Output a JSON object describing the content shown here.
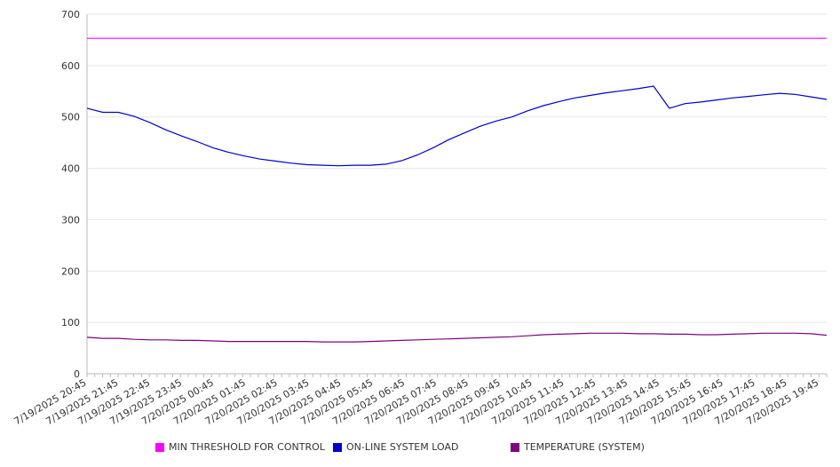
{
  "chart_data": {
    "type": "line",
    "title": "",
    "xlabel": "",
    "ylabel": "",
    "ylim": [
      0,
      700
    ],
    "yticks": [
      0,
      100,
      200,
      300,
      400,
      500,
      600,
      700
    ],
    "grid": true,
    "legend_position": "bottom",
    "x_tick_labels": [
      "7/19/2025 20:45",
      "7/19/2025 21:45",
      "7/19/2025 22:45",
      "7/19/2025 23:45",
      "7/20/2025 00:45",
      "7/20/2025 01:45",
      "7/20/2025 02:45",
      "7/20/2025 03:45",
      "7/20/2025 04:45",
      "7/20/2025 05:45",
      "7/20/2025 06:45",
      "7/20/2025 07:45",
      "7/20/2025 08:45",
      "7/20/2025 09:45",
      "7/20/2025 10:45",
      "7/20/2025 11:45",
      "7/20/2025 12:45",
      "7/20/2025 13:45",
      "7/20/2025 14:45",
      "7/20/2025 15:45",
      "7/20/2025 16:45",
      "7/20/2025 17:45",
      "7/20/2025 18:45",
      "7/20/2025 19:45"
    ],
    "x": [
      "7/19/2025 20:45",
      "7/19/2025 21:15",
      "7/19/2025 21:45",
      "7/19/2025 22:15",
      "7/19/2025 22:45",
      "7/19/2025 23:15",
      "7/19/2025 23:45",
      "7/20/2025 00:15",
      "7/20/2025 00:45",
      "7/20/2025 01:15",
      "7/20/2025 01:45",
      "7/20/2025 02:15",
      "7/20/2025 02:45",
      "7/20/2025 03:15",
      "7/20/2025 03:45",
      "7/20/2025 04:15",
      "7/20/2025 04:45",
      "7/20/2025 05:15",
      "7/20/2025 05:45",
      "7/20/2025 06:15",
      "7/20/2025 06:45",
      "7/20/2025 07:15",
      "7/20/2025 07:45",
      "7/20/2025 08:15",
      "7/20/2025 08:45",
      "7/20/2025 09:15",
      "7/20/2025 09:45",
      "7/20/2025 10:15",
      "7/20/2025 10:45",
      "7/20/2025 11:15",
      "7/20/2025 11:45",
      "7/20/2025 12:15",
      "7/20/2025 12:45",
      "7/20/2025 13:15",
      "7/20/2025 13:45",
      "7/20/2025 14:15",
      "7/20/2025 14:45",
      "7/20/2025 15:15",
      "7/20/2025 15:45",
      "7/20/2025 16:15",
      "7/20/2025 16:45",
      "7/20/2025 17:15",
      "7/20/2025 17:45",
      "7/20/2025 18:15",
      "7/20/2025 18:45",
      "7/20/2025 19:15",
      "7/20/2025 19:45",
      "7/20/2025 20:15"
    ],
    "series": [
      {
        "name": "MIN THRESHOLD FOR CONTROL",
        "color": "#ff00ff",
        "values": [
          653,
          653,
          653,
          653,
          653,
          653,
          653,
          653,
          653,
          653,
          653,
          653,
          653,
          653,
          653,
          653,
          653,
          653,
          653,
          653,
          653,
          653,
          653,
          653,
          653,
          653,
          653,
          653,
          653,
          653,
          653,
          653,
          653,
          653,
          653,
          653,
          653,
          653,
          653,
          653,
          653,
          653,
          653,
          653,
          653,
          653,
          653,
          653
        ]
      },
      {
        "name": "ON-LINE SYSTEM LOAD",
        "color": "#0000cc",
        "values": [
          517,
          509,
          509,
          501,
          489,
          475,
          463,
          452,
          440,
          431,
          424,
          418,
          414,
          410,
          407,
          406,
          405,
          406,
          406,
          408,
          415,
          426,
          440,
          456,
          469,
          482,
          492,
          500,
          512,
          522,
          530,
          537,
          542,
          547,
          551,
          555,
          560,
          517,
          526,
          529,
          533,
          537,
          540,
          543,
          546,
          544,
          539,
          534
        ]
      },
      {
        "name": "TEMPERATURE (SYSTEM)",
        "color": "#800080",
        "values": [
          71,
          69,
          69,
          67,
          66,
          66,
          65,
          65,
          64,
          63,
          63,
          63,
          63,
          63,
          63,
          62,
          62,
          62,
          63,
          64,
          65,
          66,
          67,
          68,
          69,
          70,
          71,
          72,
          74,
          76,
          77,
          78,
          79,
          79,
          79,
          78,
          78,
          77,
          77,
          76,
          76,
          77,
          78,
          79,
          79,
          79,
          78,
          75
        ]
      }
    ]
  }
}
